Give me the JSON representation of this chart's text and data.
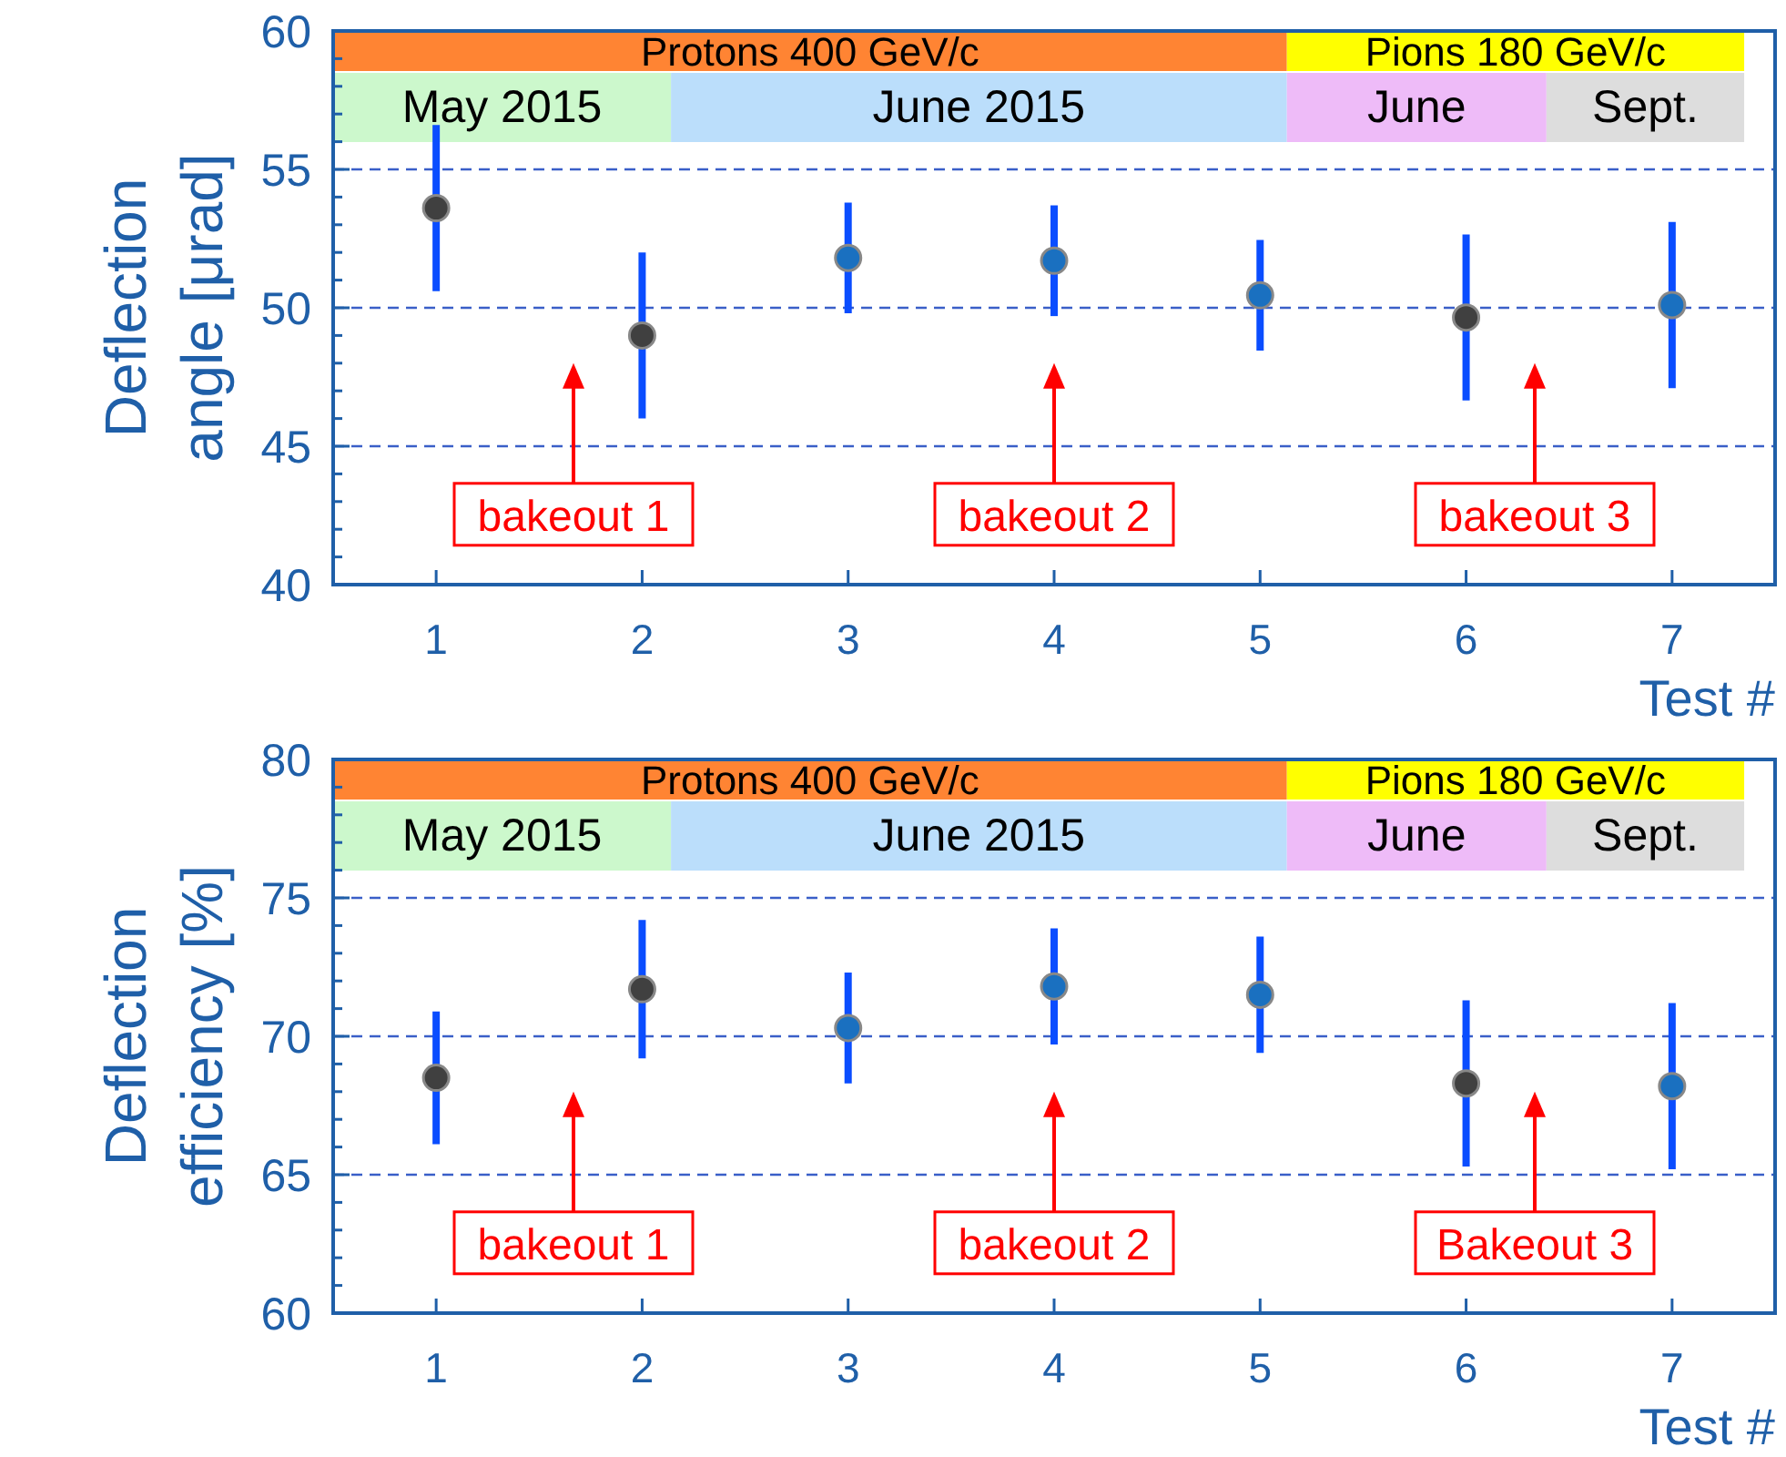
{
  "chart_data": [
    {
      "type": "scatter",
      "ylabel": "Deflection angle [μrad]",
      "xlabel": "Test #",
      "xlim": [
        0.5,
        7.5
      ],
      "xticks": [
        1,
        2,
        3,
        4,
        5,
        6,
        7
      ],
      "ylim": [
        40,
        60
      ],
      "yticks": [
        40,
        {
          "value": 41,
          "label": null
        },
        {
          "value": 42,
          "label": null
        },
        {
          "value": 43,
          "label": null
        },
        {
          "value": 44,
          "label": null
        },
        45,
        {
          "value": 46,
          "label": null
        },
        {
          "value": 47,
          "label": null
        },
        {
          "value": 48,
          "label": null
        },
        {
          "value": 49,
          "label": null
        },
        50,
        {
          "value": 51,
          "label": null
        },
        {
          "value": 52,
          "label": null
        },
        {
          "value": 53,
          "label": null
        },
        {
          "value": 54,
          "label": null
        },
        55,
        {
          "value": 56,
          "label": null
        },
        {
          "value": 57,
          "label": null
        },
        {
          "value": 58,
          "label": null
        },
        {
          "value": 59,
          "label": null
        },
        60
      ],
      "grid": "y",
      "marker": "circle",
      "series": [
        {
          "color": "#404040",
          "x": [
            1,
            2,
            6
          ],
          "values": [
            53.6,
            49.0,
            49.65
          ],
          "errors": [
            3,
            3,
            3
          ]
        },
        {
          "color": "#1a70c0",
          "x": [
            3,
            4,
            5,
            7
          ],
          "values": [
            51.8,
            51.7,
            50.45,
            50.1
          ],
          "errors": [
            2,
            2,
            2,
            3
          ]
        }
      ],
      "bands": [
        {
          "axis": "x",
          "from": 0.5,
          "to": 5.13,
          "label": "Protons 400 GeV/c",
          "color": "#ff8433"
        },
        {
          "axis": "x",
          "from": 5.13,
          "to": 7.35,
          "label": "Pions 180 GeV/c",
          "color": "#ffff00"
        },
        {
          "axis": "x",
          "from": 0.5,
          "to": 2.14,
          "label": "May 2015",
          "color": "#ccf8cc"
        },
        {
          "axis": "x",
          "from": 2.14,
          "to": 5.13,
          "label": "June 2015",
          "color": "#bbdefb"
        },
        {
          "axis": "x",
          "from": 5.13,
          "to": 6.39,
          "label": "June",
          "color": "#eebbf8"
        },
        {
          "axis": "x",
          "from": 6.39,
          "to": 7.35,
          "label": "Sept.",
          "color": "#dddddd"
        }
      ],
      "annotations": [
        "bakeout 1",
        "bakeout 2",
        "bakeout 3"
      ]
    },
    {
      "type": "scatter",
      "ylabel": "Deflection efficiency [%]",
      "xlabel": "Test #",
      "xlim": [
        0.5,
        7.5
      ],
      "xticks": [
        1,
        2,
        3,
        4,
        5,
        6,
        7
      ],
      "ylim": [
        60,
        80
      ],
      "yticks": [
        60,
        {
          "value": 61,
          "label": null
        },
        {
          "value": 62,
          "label": null
        },
        {
          "value": 63,
          "label": null
        },
        {
          "value": 64,
          "label": null
        },
        65,
        {
          "value": 66,
          "label": null
        },
        {
          "value": 67,
          "label": null
        },
        {
          "value": 68,
          "label": null
        },
        {
          "value": 69,
          "label": null
        },
        70,
        {
          "value": 71,
          "label": null
        },
        {
          "value": 72,
          "label": null
        },
        {
          "value": 73,
          "label": null
        },
        {
          "value": 74,
          "label": null
        },
        75,
        {
          "value": 76,
          "label": null
        },
        {
          "value": 77,
          "label": null
        },
        {
          "value": 78,
          "label": null
        },
        {
          "value": 79,
          "label": null
        },
        80
      ],
      "grid": "y",
      "marker": "circle",
      "series": [
        {
          "color": "#404040",
          "x": [
            1,
            2,
            6
          ],
          "values": [
            68.5,
            71.7,
            68.3
          ],
          "errors": [
            2.4,
            2.5,
            3
          ]
        },
        {
          "color": "#1a70c0",
          "x": [
            3,
            4,
            5,
            7
          ],
          "values": [
            70.3,
            71.8,
            71.5,
            68.2
          ],
          "errors": [
            2,
            2.1,
            2.1,
            3
          ]
        }
      ],
      "bands": [
        {
          "axis": "x",
          "from": 0.5,
          "to": 5.13,
          "label": "Protons 400 GeV/c",
          "color": "#ff8433"
        },
        {
          "axis": "x",
          "from": 5.13,
          "to": 7.35,
          "label": "Pions 180 GeV/c",
          "color": "#ffff00"
        },
        {
          "axis": "x",
          "from": 0.5,
          "to": 2.14,
          "label": "May 2015",
          "color": "#ccf8cc"
        },
        {
          "axis": "x",
          "from": 2.14,
          "to": 5.13,
          "label": "June 2015",
          "color": "#bbdefb"
        },
        {
          "axis": "x",
          "from": 5.13,
          "to": 6.39,
          "label": "June",
          "color": "#eebbf8"
        },
        {
          "axis": "x",
          "from": 6.39,
          "to": 7.35,
          "label": "Sept.",
          "color": "#dddddd"
        }
      ],
      "annotations": [
        "bakeout 1",
        "bakeout 2",
        "Bakeout 3"
      ]
    }
  ]
}
